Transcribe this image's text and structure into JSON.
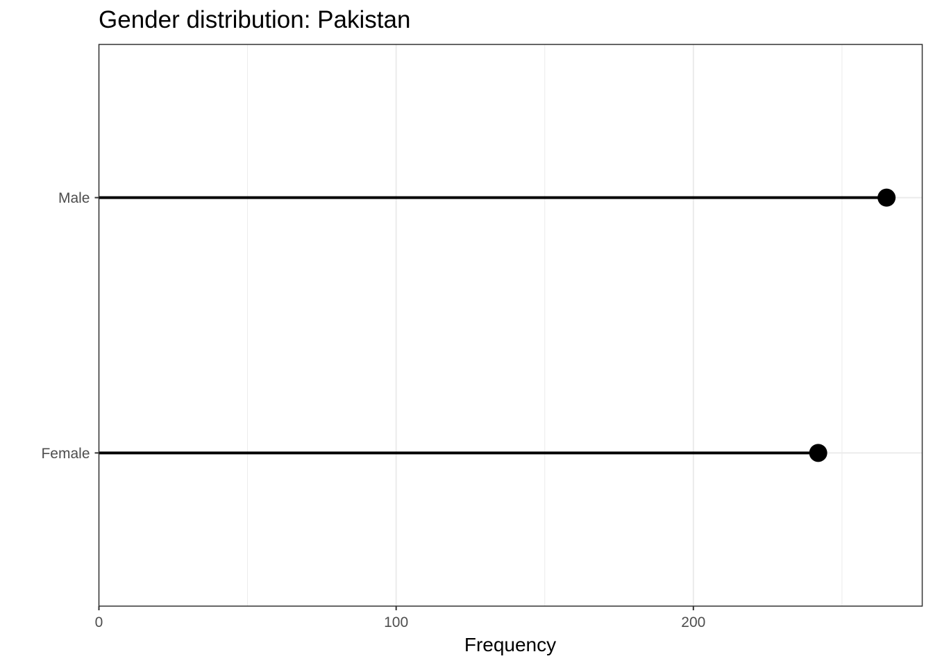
{
  "chart_data": {
    "type": "lollipop",
    "title": "Gender distribution: Pakistan",
    "xlabel": "Frequency",
    "ylabel": "",
    "categories": [
      "Female",
      "Male"
    ],
    "values": [
      242,
      265
    ],
    "xlim": [
      0,
      277
    ],
    "x_major_ticks": [
      0,
      100,
      200
    ],
    "x_major_tick_labels": [
      "0",
      "100",
      "200"
    ],
    "x_minor_ticks": [
      50,
      150,
      250
    ],
    "grid": true,
    "legend": "none",
    "colors": {
      "marker": "#000000",
      "stem": "#000000",
      "grid": "#ebebeb",
      "panel_border": "#333333"
    }
  }
}
